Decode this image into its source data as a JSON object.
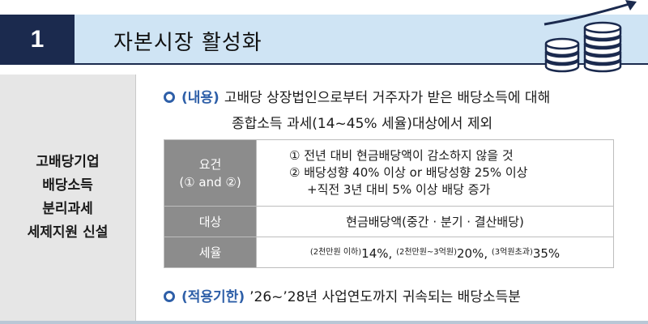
{
  "header": {
    "number": "1",
    "title": "자본시장 활성화"
  },
  "left_cell": {
    "lines": [
      "고배당기업",
      "배당소득",
      "분리과세",
      "세제지원 신설"
    ]
  },
  "bullet1": {
    "tag": "(내용)",
    "text": "고배당 상장법인으로부터 거주자가 받은 배당소득에 대해",
    "continuation": "종합소득 과세(14~45% 세율)대상에서 제외"
  },
  "table": {
    "requirements": {
      "label": "요건",
      "sublabel": "(① and ②)",
      "lines": [
        "① 전년 대비 현금배당액이 감소하지 않을 것",
        "② 배당성향 40% 이상 or 배당성향 25% 이상",
        "+직전 3년 대비 5% 이상 배당 증가"
      ]
    },
    "target": {
      "label": "대상",
      "value": "현금배당액(중간 · 분기 · 결산배당)"
    },
    "rate": {
      "label": "세율",
      "tiers": [
        {
          "cond": "(2천만원 이하)",
          "rate": "14%",
          "sep": ","
        },
        {
          "cond": "(2천만원~3억원)",
          "rate": "20%",
          "sep": ","
        },
        {
          "cond": "(3억원초과)",
          "rate": "35%",
          "sep": ""
        }
      ]
    }
  },
  "bullet2": {
    "tag": "(적용기한)",
    "text": "’26~’28년 사업연도까지 귀속되는 배당소득분"
  },
  "colors": {
    "navy": "#1b2a4e",
    "title_bg": "#cfe4f4",
    "accent_blue": "#2e5fa8",
    "table_header": "#8c8c8c",
    "left_cell_bg": "#e6e6e6"
  },
  "icons": [
    "coins-growth-icon",
    "bullet-circle-icon"
  ]
}
